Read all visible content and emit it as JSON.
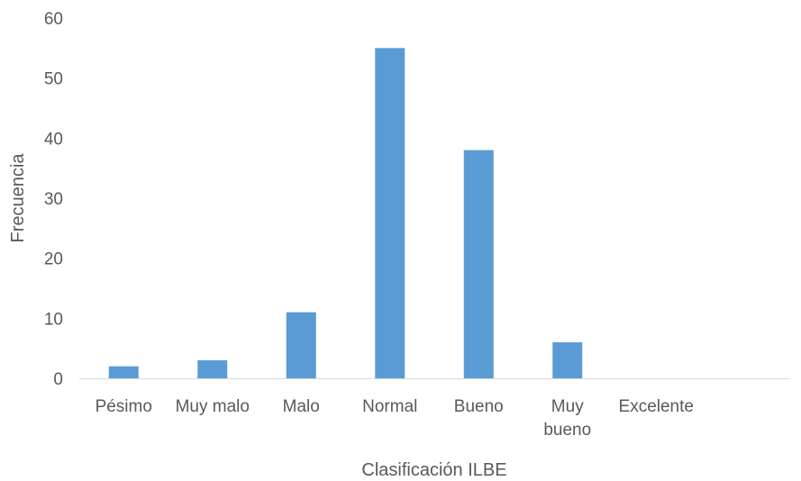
{
  "chart_data": {
    "type": "bar",
    "title": "",
    "xlabel": "Clasificación ILBE",
    "ylabel": "Frecuencia",
    "categories": [
      "Pésimo",
      "Muy malo",
      "Malo",
      "Normal",
      "Bueno",
      "Muy bueno",
      "Excelente"
    ],
    "category_lines": [
      [
        "Pésimo"
      ],
      [
        "Muy malo"
      ],
      [
        "Malo"
      ],
      [
        "Normal"
      ],
      [
        "Bueno"
      ],
      [
        "Muy",
        "bueno"
      ],
      [
        "Excelente"
      ]
    ],
    "values": [
      2,
      3,
      11,
      55,
      38,
      6,
      0
    ],
    "ylim": [
      0,
      60
    ],
    "yticks": [
      0,
      10,
      20,
      30,
      40,
      50,
      60
    ],
    "grid": false,
    "legend": "none",
    "colors": {
      "bar": "#5b9bd5",
      "axis": "#d9d9d9",
      "text": "#595959"
    }
  }
}
